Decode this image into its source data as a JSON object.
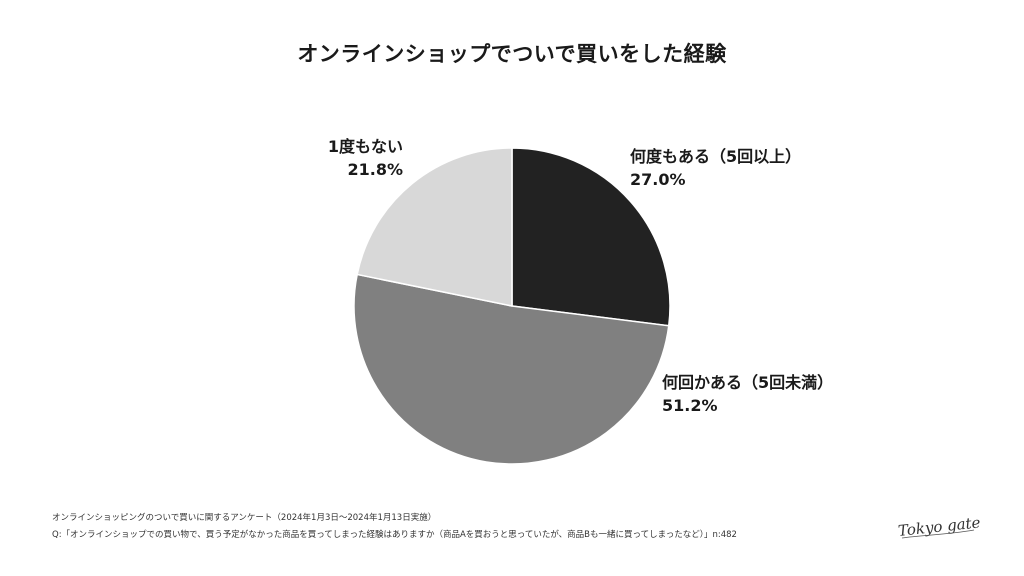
{
  "chart_data": {
    "type": "pie",
    "title": "オンラインショップでついで買いをした経験",
    "slices": [
      {
        "label": "何度もある（5回以上）",
        "value": 27.0,
        "value_label": "27.0%",
        "color": "#222222"
      },
      {
        "label": "何回かある（5回未満）",
        "value": 51.2,
        "value_label": "51.2%",
        "color": "#808080"
      },
      {
        "label": "1度もない",
        "value": 21.8,
        "value_label": "21.8%",
        "color": "#d8d8d8"
      }
    ],
    "start": "12 o'clock",
    "direction": "clockwise",
    "legend": "none"
  },
  "footnotes": {
    "survey": "オンラインショッピングのついで買いに関するアンケート（2024年1月3日〜2024年1月13日実施）",
    "question": "Q:「オンラインショップでの買い物で、買う予定がなかった商品を買ってしまった経験はありますか（商品Aを買おうと思っていたが、商品Bも一緒に買ってしまったなど）」n:482"
  },
  "logo": {
    "text": "Tokyo gate",
    "icon": "tokyo-gate-logo"
  }
}
